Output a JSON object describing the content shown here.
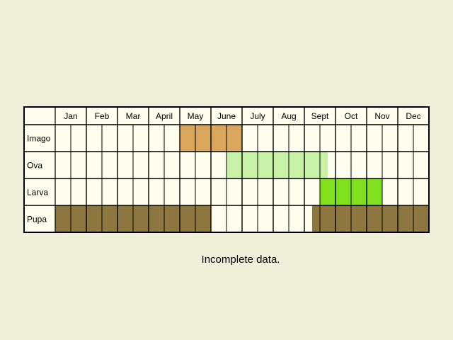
{
  "chart_data": {
    "type": "table",
    "months": [
      "Jan",
      "Feb",
      "Mar",
      "April",
      "May",
      "June",
      "July",
      "Aug",
      "Sept",
      "Oct",
      "Nov",
      "Dec"
    ],
    "periods_per_month": 2,
    "x_unit": "half-month period (1-24)",
    "stages": [
      {
        "name": "Imago",
        "color": "#d8a65c",
        "spans": [
          {
            "start": 9,
            "end": 12
          }
        ]
      },
      {
        "name": "Ova",
        "color": "#c7f2a8",
        "spans": [
          {
            "start": 12,
            "end": 17.5
          }
        ]
      },
      {
        "name": "Larva",
        "color": "#80e01e",
        "spans": [
          {
            "start": 18,
            "end": 21
          }
        ]
      },
      {
        "name": "Pupa",
        "color": "#8e7640",
        "spans": [
          {
            "start": 1,
            "end": 10
          },
          {
            "start": 17.5,
            "end": 24
          }
        ]
      }
    ]
  },
  "note": "Incomplete data."
}
